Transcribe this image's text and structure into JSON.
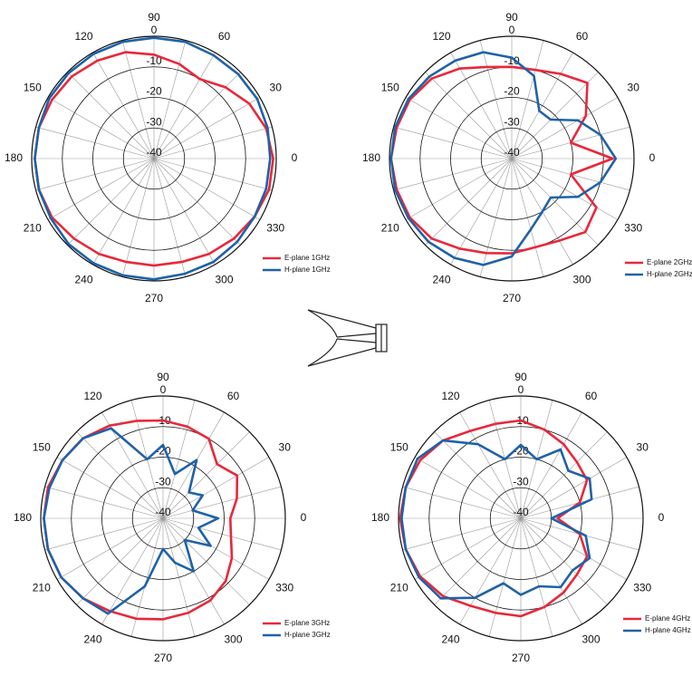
{
  "chart_data": [
    {
      "type": "polar",
      "theta": [
        0,
        15,
        30,
        45,
        60,
        75,
        90,
        105,
        120,
        135,
        150,
        165,
        180,
        195,
        210,
        225,
        240,
        255,
        270,
        285,
        300,
        315,
        330,
        345
      ],
      "rlim": [
        -40,
        0
      ],
      "rticks": [
        -40,
        -30,
        -20,
        -10,
        0
      ],
      "thetaticks": [
        0,
        30,
        60,
        90,
        120,
        150,
        180,
        210,
        240,
        270,
        300,
        330
      ],
      "series": [
        {
          "name": "E-plane 1GHz",
          "color": "#e8283a",
          "values": [
            -1,
            -2,
            -4,
            -7,
            -10,
            -8,
            -6,
            -4,
            -3,
            -2,
            -1.5,
            -1,
            -1,
            -1,
            -1.5,
            -3,
            -4,
            -5,
            -5,
            -5,
            -4,
            -3,
            -2,
            -1
          ]
        },
        {
          "name": "H-plane 1GHz",
          "color": "#1f62a8",
          "values": [
            -2,
            -1.5,
            -1,
            -1,
            -1,
            -0.5,
            -0.5,
            -0.5,
            -0.5,
            -0.5,
            -0.5,
            -1,
            -1,
            -1,
            -1,
            -0.5,
            -0.5,
            -0.5,
            -0.5,
            -1,
            -1,
            -1.5,
            -2,
            -2
          ]
        }
      ]
    },
    {
      "type": "polar",
      "theta": [
        0,
        15,
        30,
        45,
        60,
        75,
        90,
        105,
        120,
        135,
        150,
        165,
        180,
        195,
        210,
        225,
        240,
        255,
        270,
        285,
        300,
        315,
        330,
        345
      ],
      "rlim": [
        -40,
        0
      ],
      "rticks": [
        -40,
        -30,
        -20,
        -10,
        0
      ],
      "thetaticks": [
        0,
        30,
        60,
        90,
        120,
        150,
        180,
        210,
        240,
        270,
        300,
        330
      ],
      "series": [
        {
          "name": "E-plane 2GHz",
          "color": "#e8283a",
          "values": [
            -7,
            -20,
            -12,
            -5,
            -8,
            -10,
            -10,
            -9,
            -6,
            -3,
            -1.5,
            -1,
            -0.5,
            -1,
            -1.5,
            -3,
            -6,
            -8,
            -9,
            -10,
            -9,
            -6,
            -8,
            -20
          ]
        },
        {
          "name": "H-plane 2GHz",
          "color": "#1f62a8",
          "values": [
            -6,
            -10,
            -15,
            -22,
            -22,
            -12,
            -7,
            -4,
            -3,
            -2,
            -1,
            -0.5,
            -0.5,
            -0.5,
            -1,
            -1.5,
            -2.5,
            -4,
            -8,
            -16,
            -20,
            -22,
            -15,
            -10
          ]
        }
      ]
    },
    {
      "type": "polar",
      "theta": [
        0,
        15,
        30,
        45,
        60,
        75,
        90,
        105,
        120,
        135,
        150,
        165,
        180,
        195,
        210,
        225,
        240,
        255,
        270,
        285,
        300,
        315,
        330,
        345
      ],
      "rlim": [
        -40,
        0
      ],
      "rticks": [
        -40,
        -30,
        -20,
        -10,
        0
      ],
      "thetaticks": [
        0,
        30,
        60,
        90,
        120,
        150,
        180,
        210,
        240,
        270,
        300,
        330
      ],
      "series": [
        {
          "name": "E-plane 3GHz",
          "color": "#e8283a",
          "values": [
            -18,
            -15,
            -12,
            -15,
            -10,
            -9,
            -8,
            -7,
            -5,
            -3,
            -2,
            -1,
            -1,
            -1,
            -1.5,
            -3,
            -5,
            -6,
            -7,
            -8,
            -9,
            -11,
            -14,
            -17
          ]
        },
        {
          "name": "H-plane 3GHz",
          "color": "#1f62a8",
          "values": [
            -22,
            -30,
            -25,
            -28,
            -18,
            -25,
            -16,
            -20,
            -6,
            -3,
            -2,
            -1.5,
            -1,
            -1,
            -1.5,
            -3,
            -4,
            -17,
            -30,
            -25,
            -20,
            -30,
            -22,
            -28
          ]
        }
      ]
    },
    {
      "type": "polar",
      "theta": [
        0,
        15,
        30,
        45,
        60,
        75,
        90,
        105,
        120,
        135,
        150,
        165,
        180,
        195,
        210,
        225,
        240,
        255,
        270,
        285,
        300,
        315,
        330,
        345
      ],
      "rlim": [
        -40,
        0
      ],
      "rticks": [
        -40,
        -30,
        -20,
        -10,
        0
      ],
      "thetaticks": [
        0,
        30,
        60,
        90,
        120,
        150,
        180,
        210,
        240,
        270,
        300,
        330
      ],
      "series": [
        {
          "name": "E-plane 4GHz",
          "color": "#e8283a",
          "values": [
            -28,
            -20,
            -15,
            -14,
            -12,
            -10,
            -8,
            -8,
            -7,
            -4,
            -2,
            -1,
            -0.5,
            -1,
            -2,
            -4,
            -7,
            -8,
            -8,
            -10,
            -12,
            -14,
            -15,
            -20
          ]
        },
        {
          "name": "H-plane 4GHz",
          "color": "#1f62a8",
          "values": [
            -30,
            -16,
            -14,
            -18,
            -14,
            -20,
            -16,
            -20,
            -12,
            -4,
            -1,
            -1,
            -1,
            -1,
            -1.5,
            -3,
            -10,
            -18,
            -15,
            -17,
            -14,
            -16,
            -14,
            -18
          ]
        }
      ]
    }
  ]
}
